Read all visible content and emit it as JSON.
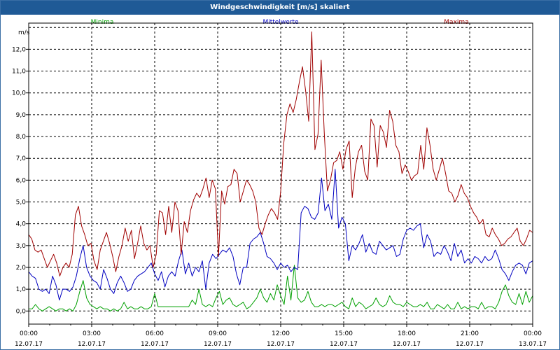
{
  "window": {
    "title": "Windgeschwindigkeit [m/s] skaliert"
  },
  "chart_data": {
    "type": "line",
    "ylabel": "m/s",
    "ylim": [
      -0.6,
      13.2
    ],
    "xlim": [
      0,
      24
    ],
    "yticks": [
      "0,0",
      "1,0",
      "2,0",
      "3,0",
      "4,0",
      "5,0",
      "6,0",
      "7,0",
      "8,0",
      "9,0",
      "10,0",
      "11,0",
      "12,0"
    ],
    "xticks": [
      {
        "time": "00:00",
        "date": "12.07.17"
      },
      {
        "time": "03:00",
        "date": "12.07.17"
      },
      {
        "time": "06:00",
        "date": "12.07.17"
      },
      {
        "time": "09:00",
        "date": "12.07.17"
      },
      {
        "time": "12:00",
        "date": "12.07.17"
      },
      {
        "time": "15:00",
        "date": "12.07.17"
      },
      {
        "time": "18:00",
        "date": "12.07.17"
      },
      {
        "time": "21:00",
        "date": "12.07.17"
      },
      {
        "time": "00:00",
        "date": "13.07.17"
      }
    ],
    "grid": true,
    "series": [
      {
        "name": "Minima",
        "color": "#00a000",
        "legend_pos": "left",
        "values": [
          0.1,
          0.1,
          0.3,
          0.1,
          0.0,
          0.1,
          0.2,
          0.1,
          0.0,
          0.1,
          0.1,
          0.0,
          0.1,
          0.0,
          0.3,
          0.9,
          1.4,
          0.6,
          0.3,
          0.2,
          0.1,
          0.2,
          0.1,
          0.1,
          0.0,
          0.1,
          0.0,
          0.1,
          0.4,
          0.1,
          0.2,
          0.1,
          0.1,
          0.2,
          0.1,
          0.1,
          0.2,
          0.8,
          0.2,
          0.2,
          0.2,
          0.2,
          0.2,
          0.2,
          0.2,
          0.2,
          0.2,
          0.2,
          0.5,
          0.3,
          1.0,
          0.3,
          0.2,
          0.3,
          0.2,
          0.6,
          0.9,
          0.3,
          0.5,
          0.6,
          0.3,
          0.2,
          0.3,
          0.4,
          0.1,
          0.2,
          0.4,
          0.6,
          1.0,
          0.6,
          0.4,
          0.8,
          0.5,
          1.2,
          0.7,
          0.3,
          1.6,
          0.5,
          2.1,
          0.6,
          0.4,
          0.5,
          0.9,
          0.4,
          0.2,
          0.2,
          0.3,
          0.2,
          0.3,
          0.3,
          0.2,
          0.3,
          0.4,
          0.2,
          0.1,
          0.6,
          0.2,
          0.4,
          0.3,
          0.1,
          0.2,
          0.3,
          0.6,
          0.3,
          0.2,
          0.3,
          0.7,
          0.4,
          0.3,
          0.3,
          0.2,
          0.4,
          0.3,
          0.2,
          0.2,
          0.3,
          0.2,
          0.4,
          0.1,
          0.1,
          0.3,
          0.2,
          0.1,
          0.3,
          0.1,
          0.1,
          0.4,
          0.1,
          0.2,
          0.1,
          0.2,
          0.2,
          0.1,
          0.4,
          0.1,
          0.2,
          0.2,
          0.1,
          0.4,
          0.9,
          1.2,
          0.7,
          0.4,
          0.3,
          0.8,
          0.3,
          0.9,
          0.4,
          0.7
        ]
      },
      {
        "name": "Mittelwerte",
        "color": "#0000c0",
        "legend_pos": "center",
        "values": [
          1.8,
          1.6,
          1.5,
          1.0,
          0.9,
          1.0,
          0.8,
          1.6,
          1.2,
          0.5,
          1.0,
          1.0,
          0.9,
          1.1,
          1.6,
          2.4,
          3.0,
          2.0,
          1.6,
          1.4,
          1.3,
          1.0,
          1.9,
          1.5,
          1.0,
          0.8,
          1.3,
          1.6,
          1.3,
          0.9,
          1.0,
          1.4,
          1.6,
          1.7,
          1.8,
          2.0,
          2.2,
          1.7,
          1.4,
          1.8,
          1.1,
          1.6,
          1.8,
          1.6,
          2.3,
          2.8,
          1.7,
          2.2,
          1.6,
          2.0,
          1.8,
          2.3,
          1.0,
          2.2,
          2.6,
          2.4,
          2.6,
          2.8,
          2.7,
          2.9,
          2.5,
          1.7,
          1.2,
          2.0,
          2.0,
          3.1,
          3.3,
          3.4,
          3.6,
          3.1,
          2.5,
          2.4,
          2.2,
          1.9,
          2.2,
          2.0,
          2.1,
          1.8,
          2.0,
          1.9,
          4.5,
          4.8,
          4.7,
          4.3,
          4.2,
          4.5,
          6.1,
          4.6,
          4.9,
          4.2,
          6.5,
          3.8,
          4.3,
          4.0,
          2.3,
          3.0,
          2.8,
          3.1,
          3.5,
          2.7,
          3.1,
          2.7,
          2.6,
          3.2,
          3.0,
          2.8,
          2.9,
          3.0,
          2.5,
          2.6,
          3.3,
          3.7,
          3.8,
          3.7,
          3.9,
          4.0,
          2.9,
          3.5,
          3.2,
          2.5,
          2.7,
          2.6,
          3.0,
          2.7,
          2.3,
          3.1,
          2.5,
          2.8,
          2.2,
          2.4,
          2.2,
          2.5,
          2.4,
          2.2,
          2.5,
          2.3,
          2.4,
          2.8,
          2.4,
          1.9,
          1.7,
          1.4,
          1.8,
          2.1,
          2.2,
          2.1,
          1.7,
          2.2,
          2.3
        ]
      },
      {
        "name": "Maxima",
        "color": "#a00000",
        "legend_pos": "right",
        "values": [
          3.5,
          3.3,
          2.8,
          2.7,
          2.8,
          2.4,
          2.0,
          2.3,
          2.6,
          2.2,
          1.6,
          2.0,
          2.2,
          2.0,
          2.6,
          4.4,
          4.8,
          3.9,
          3.5,
          3.0,
          3.1,
          2.3,
          1.9,
          2.8,
          3.2,
          3.6,
          3.1,
          2.5,
          1.8,
          2.5,
          3.0,
          3.8,
          3.2,
          3.7,
          2.4,
          3.1,
          3.9,
          3.1,
          2.8,
          3.0,
          2.0,
          2.6,
          4.6,
          4.5,
          3.5,
          4.8,
          3.6,
          5.0,
          4.6,
          2.6,
          4.1,
          3.6,
          4.6,
          5.1,
          5.4,
          5.2,
          5.6,
          6.1,
          5.2,
          6.0,
          5.6,
          2.5,
          5.5,
          4.9,
          5.7,
          5.8,
          6.5,
          6.3,
          5.0,
          5.5,
          6.0,
          5.8,
          5.5,
          5.0,
          3.8,
          3.5,
          4.0,
          4.4,
          4.7,
          4.5,
          4.2,
          5.5,
          7.7,
          9.0,
          9.5,
          9.1,
          9.7,
          10.5,
          11.2,
          10.1,
          8.7,
          12.8,
          7.4,
          8.1,
          11.5,
          8.2,
          5.5,
          6.0,
          6.8,
          6.9,
          7.3,
          6.5,
          7.4,
          7.8,
          5.2,
          6.6,
          7.3,
          7.6,
          6.4,
          6.0,
          8.8,
          8.5,
          6.6,
          8.5,
          8.2,
          7.5,
          9.2,
          8.7,
          7.6,
          7.3,
          6.3,
          6.7,
          6.4,
          6.0,
          6.2,
          6.3,
          7.6,
          6.5,
          8.4,
          7.6,
          6.5,
          6.0,
          6.5,
          7.0,
          6.3,
          5.5,
          5.4,
          5.0,
          5.3,
          5.8,
          5.4,
          5.2,
          4.8,
          4.5,
          4.3,
          4.0,
          4.2,
          3.5,
          3.4,
          3.8,
          3.5,
          3.3,
          3.0,
          3.1,
          3.3,
          3.4,
          3.6,
          3.8,
          3.2,
          3.0,
          3.3,
          3.7,
          3.6
        ]
      }
    ]
  }
}
